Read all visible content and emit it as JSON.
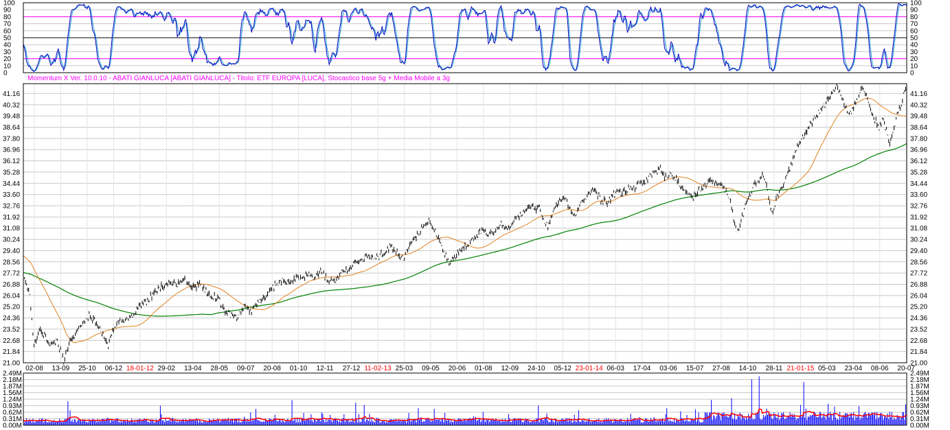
{
  "header": {
    "text": "Momentum X  Ver. 10.0.10  -  ABATI GIANLUCA  [ABATI GIANLUCA] - Titolo: ETF EUROPA  [LUCA],   Stocastico base 5g + Media Mobile a 3g"
  },
  "colors": {
    "background": "#ffffff",
    "gridline": "#c8c8c8",
    "frame": "#000000",
    "price": "#000000",
    "ma_short": "#e08020",
    "ma_long": "#008000",
    "stoch_k": "#0000c0",
    "stoch_d": "#20a0d0",
    "stoch_band": "#ff00ff",
    "volume": "#0000ff",
    "volume_avg": "#ff0000",
    "header_text": "#ff00ff",
    "date_highlight": "#ff0000"
  },
  "chart_data": [
    {
      "id": "stochastic",
      "type": "line",
      "ylim": [
        0,
        100
      ],
      "y_ticks": [
        "0",
        "10",
        "20",
        "30",
        "40",
        "50",
        "60",
        "70",
        "80",
        "90",
        "100"
      ],
      "bands": [
        20,
        50,
        80
      ],
      "series": [
        {
          "kind": "stoch_k"
        },
        {
          "kind": "stoch_d"
        }
      ]
    },
    {
      "id": "price",
      "type": "line",
      "ylim": [
        21.0,
        41.9
      ],
      "y_ticks": [
        "21.00",
        "21.84",
        "22.68",
        "23.52",
        "24.36",
        "25.20",
        "26.04",
        "26.88",
        "27.72",
        "28.56",
        "29.40",
        "30.24",
        "31.08",
        "31.92",
        "32.76",
        "33.60",
        "34.44",
        "35.28",
        "36.12",
        "36.96",
        "37.80",
        "38.64",
        "39.48",
        "40.32",
        "41.16"
      ],
      "x_ticks": [
        {
          "label": "02-08",
          "highlight": false
        },
        {
          "label": "13-09",
          "highlight": false
        },
        {
          "label": "25-10",
          "highlight": false
        },
        {
          "label": "06-12",
          "highlight": false
        },
        {
          "label": "18-01-12",
          "highlight": true
        },
        {
          "label": "29-02",
          "highlight": false
        },
        {
          "label": "13-04",
          "highlight": false
        },
        {
          "label": "28-05",
          "highlight": false
        },
        {
          "label": "09-07",
          "highlight": false
        },
        {
          "label": "20-08",
          "highlight": false
        },
        {
          "label": "01-10",
          "highlight": false
        },
        {
          "label": "12-11",
          "highlight": false
        },
        {
          "label": "27-12",
          "highlight": false
        },
        {
          "label": "11-02-13",
          "highlight": true
        },
        {
          "label": "25-03",
          "highlight": false
        },
        {
          "label": "09-05",
          "highlight": false
        },
        {
          "label": "20-06",
          "highlight": false
        },
        {
          "label": "01-08",
          "highlight": false
        },
        {
          "label": "12-09",
          "highlight": false
        },
        {
          "label": "24-10",
          "highlight": false
        },
        {
          "label": "05-12",
          "highlight": false
        },
        {
          "label": "23-01-14",
          "highlight": true
        },
        {
          "label": "06-03",
          "highlight": false
        },
        {
          "label": "17-04",
          "highlight": false
        },
        {
          "label": "03-06",
          "highlight": false
        },
        {
          "label": "15-07",
          "highlight": false
        },
        {
          "label": "27-08",
          "highlight": false
        },
        {
          "label": "14-10",
          "highlight": false
        },
        {
          "label": "28-11",
          "highlight": false
        },
        {
          "label": "21-01-15",
          "highlight": true
        },
        {
          "label": "05-03",
          "highlight": false
        },
        {
          "label": "23-04",
          "highlight": false
        },
        {
          "label": "08-06",
          "highlight": false
        },
        {
          "label": "20-07",
          "highlight": false
        }
      ],
      "close_keypoints": [
        [
          0,
          27.5
        ],
        [
          6,
          26.0
        ],
        [
          10,
          22.3
        ],
        [
          16,
          23.6
        ],
        [
          25,
          22.4
        ],
        [
          32,
          22.6
        ],
        [
          38,
          21.1
        ],
        [
          44,
          22.5
        ],
        [
          50,
          23.3
        ],
        [
          56,
          23.9
        ],
        [
          62,
          24.6
        ],
        [
          68,
          24.1
        ],
        [
          74,
          23.2
        ],
        [
          80,
          22.3
        ],
        [
          86,
          23.8
        ],
        [
          92,
          24.0
        ],
        [
          98,
          24.4
        ],
        [
          104,
          24.7
        ],
        [
          110,
          25.2
        ],
        [
          118,
          25.7
        ],
        [
          124,
          26.4
        ],
        [
          130,
          26.7
        ],
        [
          138,
          27.1
        ],
        [
          146,
          26.9
        ],
        [
          152,
          27.2
        ],
        [
          160,
          26.6
        ],
        [
          166,
          26.9
        ],
        [
          172,
          26.4
        ],
        [
          178,
          26.0
        ],
        [
          184,
          25.7
        ],
        [
          190,
          24.9
        ],
        [
          196,
          24.5
        ],
        [
          202,
          24.4
        ],
        [
          208,
          25.1
        ],
        [
          214,
          24.9
        ],
        [
          220,
          25.4
        ],
        [
          226,
          25.7
        ],
        [
          232,
          26.4
        ],
        [
          238,
          26.9
        ],
        [
          244,
          27.2
        ],
        [
          250,
          27.0
        ],
        [
          256,
          27.4
        ],
        [
          262,
          27.3
        ],
        [
          268,
          27.7
        ],
        [
          274,
          27.4
        ],
        [
          280,
          27.9
        ],
        [
          286,
          27.3
        ],
        [
          292,
          27.0
        ],
        [
          298,
          27.6
        ],
        [
          304,
          27.9
        ],
        [
          310,
          28.4
        ],
        [
          316,
          28.7
        ],
        [
          322,
          28.8
        ],
        [
          328,
          29.0
        ],
        [
          334,
          28.8
        ],
        [
          340,
          29.3
        ],
        [
          346,
          29.7
        ],
        [
          352,
          29.2
        ],
        [
          358,
          28.8
        ],
        [
          364,
          29.7
        ],
        [
          370,
          30.4
        ],
        [
          376,
          31.1
        ],
        [
          382,
          31.6
        ],
        [
          388,
          30.9
        ],
        [
          394,
          29.8
        ],
        [
          398,
          29.0
        ],
        [
          402,
          28.4
        ],
        [
          408,
          29.2
        ],
        [
          414,
          29.6
        ],
        [
          420,
          30.0
        ],
        [
          426,
          30.4
        ],
        [
          432,
          30.9
        ],
        [
          438,
          30.7
        ],
        [
          444,
          30.9
        ],
        [
          450,
          31.4
        ],
        [
          456,
          31.1
        ],
        [
          462,
          31.6
        ],
        [
          468,
          32.1
        ],
        [
          474,
          32.4
        ],
        [
          480,
          32.7
        ],
        [
          486,
          32.5
        ],
        [
          490,
          31.6
        ],
        [
          494,
          31.2
        ],
        [
          500,
          32.5
        ],
        [
          506,
          33.2
        ],
        [
          510,
          33.4
        ],
        [
          516,
          32.2
        ],
        [
          520,
          32.1
        ],
        [
          526,
          33.0
        ],
        [
          532,
          33.6
        ],
        [
          538,
          33.9
        ],
        [
          544,
          33.2
        ],
        [
          550,
          32.9
        ],
        [
          556,
          33.6
        ],
        [
          562,
          33.7
        ],
        [
          568,
          33.9
        ],
        [
          574,
          34.1
        ],
        [
          580,
          34.4
        ],
        [
          586,
          34.6
        ],
        [
          590,
          35.0
        ],
        [
          596,
          35.3
        ],
        [
          600,
          35.6
        ],
        [
          604,
          34.9
        ],
        [
          610,
          35.1
        ],
        [
          616,
          34.6
        ],
        [
          620,
          34.2
        ],
        [
          626,
          33.8
        ],
        [
          630,
          33.2
        ],
        [
          636,
          33.9
        ],
        [
          642,
          34.3
        ],
        [
          648,
          34.7
        ],
        [
          654,
          34.5
        ],
        [
          660,
          34.2
        ],
        [
          664,
          33.6
        ],
        [
          668,
          32.2
        ],
        [
          672,
          30.7
        ],
        [
          676,
          31.5
        ],
        [
          680,
          32.8
        ],
        [
          684,
          33.4
        ],
        [
          688,
          34.2
        ],
        [
          692,
          34.6
        ],
        [
          696,
          35.0
        ],
        [
          700,
          34.3
        ],
        [
          704,
          32.4
        ],
        [
          706,
          32.0
        ],
        [
          710,
          33.6
        ],
        [
          714,
          34.0
        ],
        [
          718,
          34.6
        ],
        [
          722,
          35.6
        ],
        [
          726,
          36.5
        ],
        [
          730,
          37.3
        ],
        [
          734,
          37.9
        ],
        [
          738,
          38.4
        ],
        [
          742,
          38.9
        ],
        [
          746,
          39.4
        ],
        [
          750,
          39.8
        ],
        [
          754,
          40.2
        ],
        [
          758,
          40.7
        ],
        [
          762,
          41.2
        ],
        [
          766,
          41.7
        ],
        [
          770,
          41.0
        ],
        [
          774,
          40.3
        ],
        [
          778,
          39.5
        ],
        [
          782,
          40.1
        ],
        [
          786,
          41.1
        ],
        [
          790,
          41.5
        ],
        [
          794,
          41.0
        ],
        [
          798,
          40.0
        ],
        [
          802,
          39.2
        ],
        [
          806,
          38.6
        ],
        [
          810,
          39.3
        ],
        [
          814,
          38.0
        ],
        [
          816,
          37.4
        ],
        [
          818,
          37.9
        ],
        [
          820,
          38.6
        ],
        [
          824,
          40.0
        ],
        [
          828,
          40.6
        ],
        [
          830,
          41.3
        ],
        [
          832,
          41.6
        ]
      ],
      "series": [
        {
          "kind": "price"
        },
        {
          "kind": "ma_short"
        },
        {
          "kind": "ma_long"
        }
      ]
    },
    {
      "id": "volume",
      "type": "bar",
      "ylim": [
        0,
        2.49
      ],
      "y_ticks": [
        "0.00M",
        "0.31M",
        "0.62M",
        "0.93M",
        "1.24M",
        "1.56M",
        "1.87M",
        "2.18M",
        "2.49M"
      ],
      "series": [
        {
          "kind": "volume"
        },
        {
          "kind": "volume_avg"
        }
      ]
    }
  ]
}
